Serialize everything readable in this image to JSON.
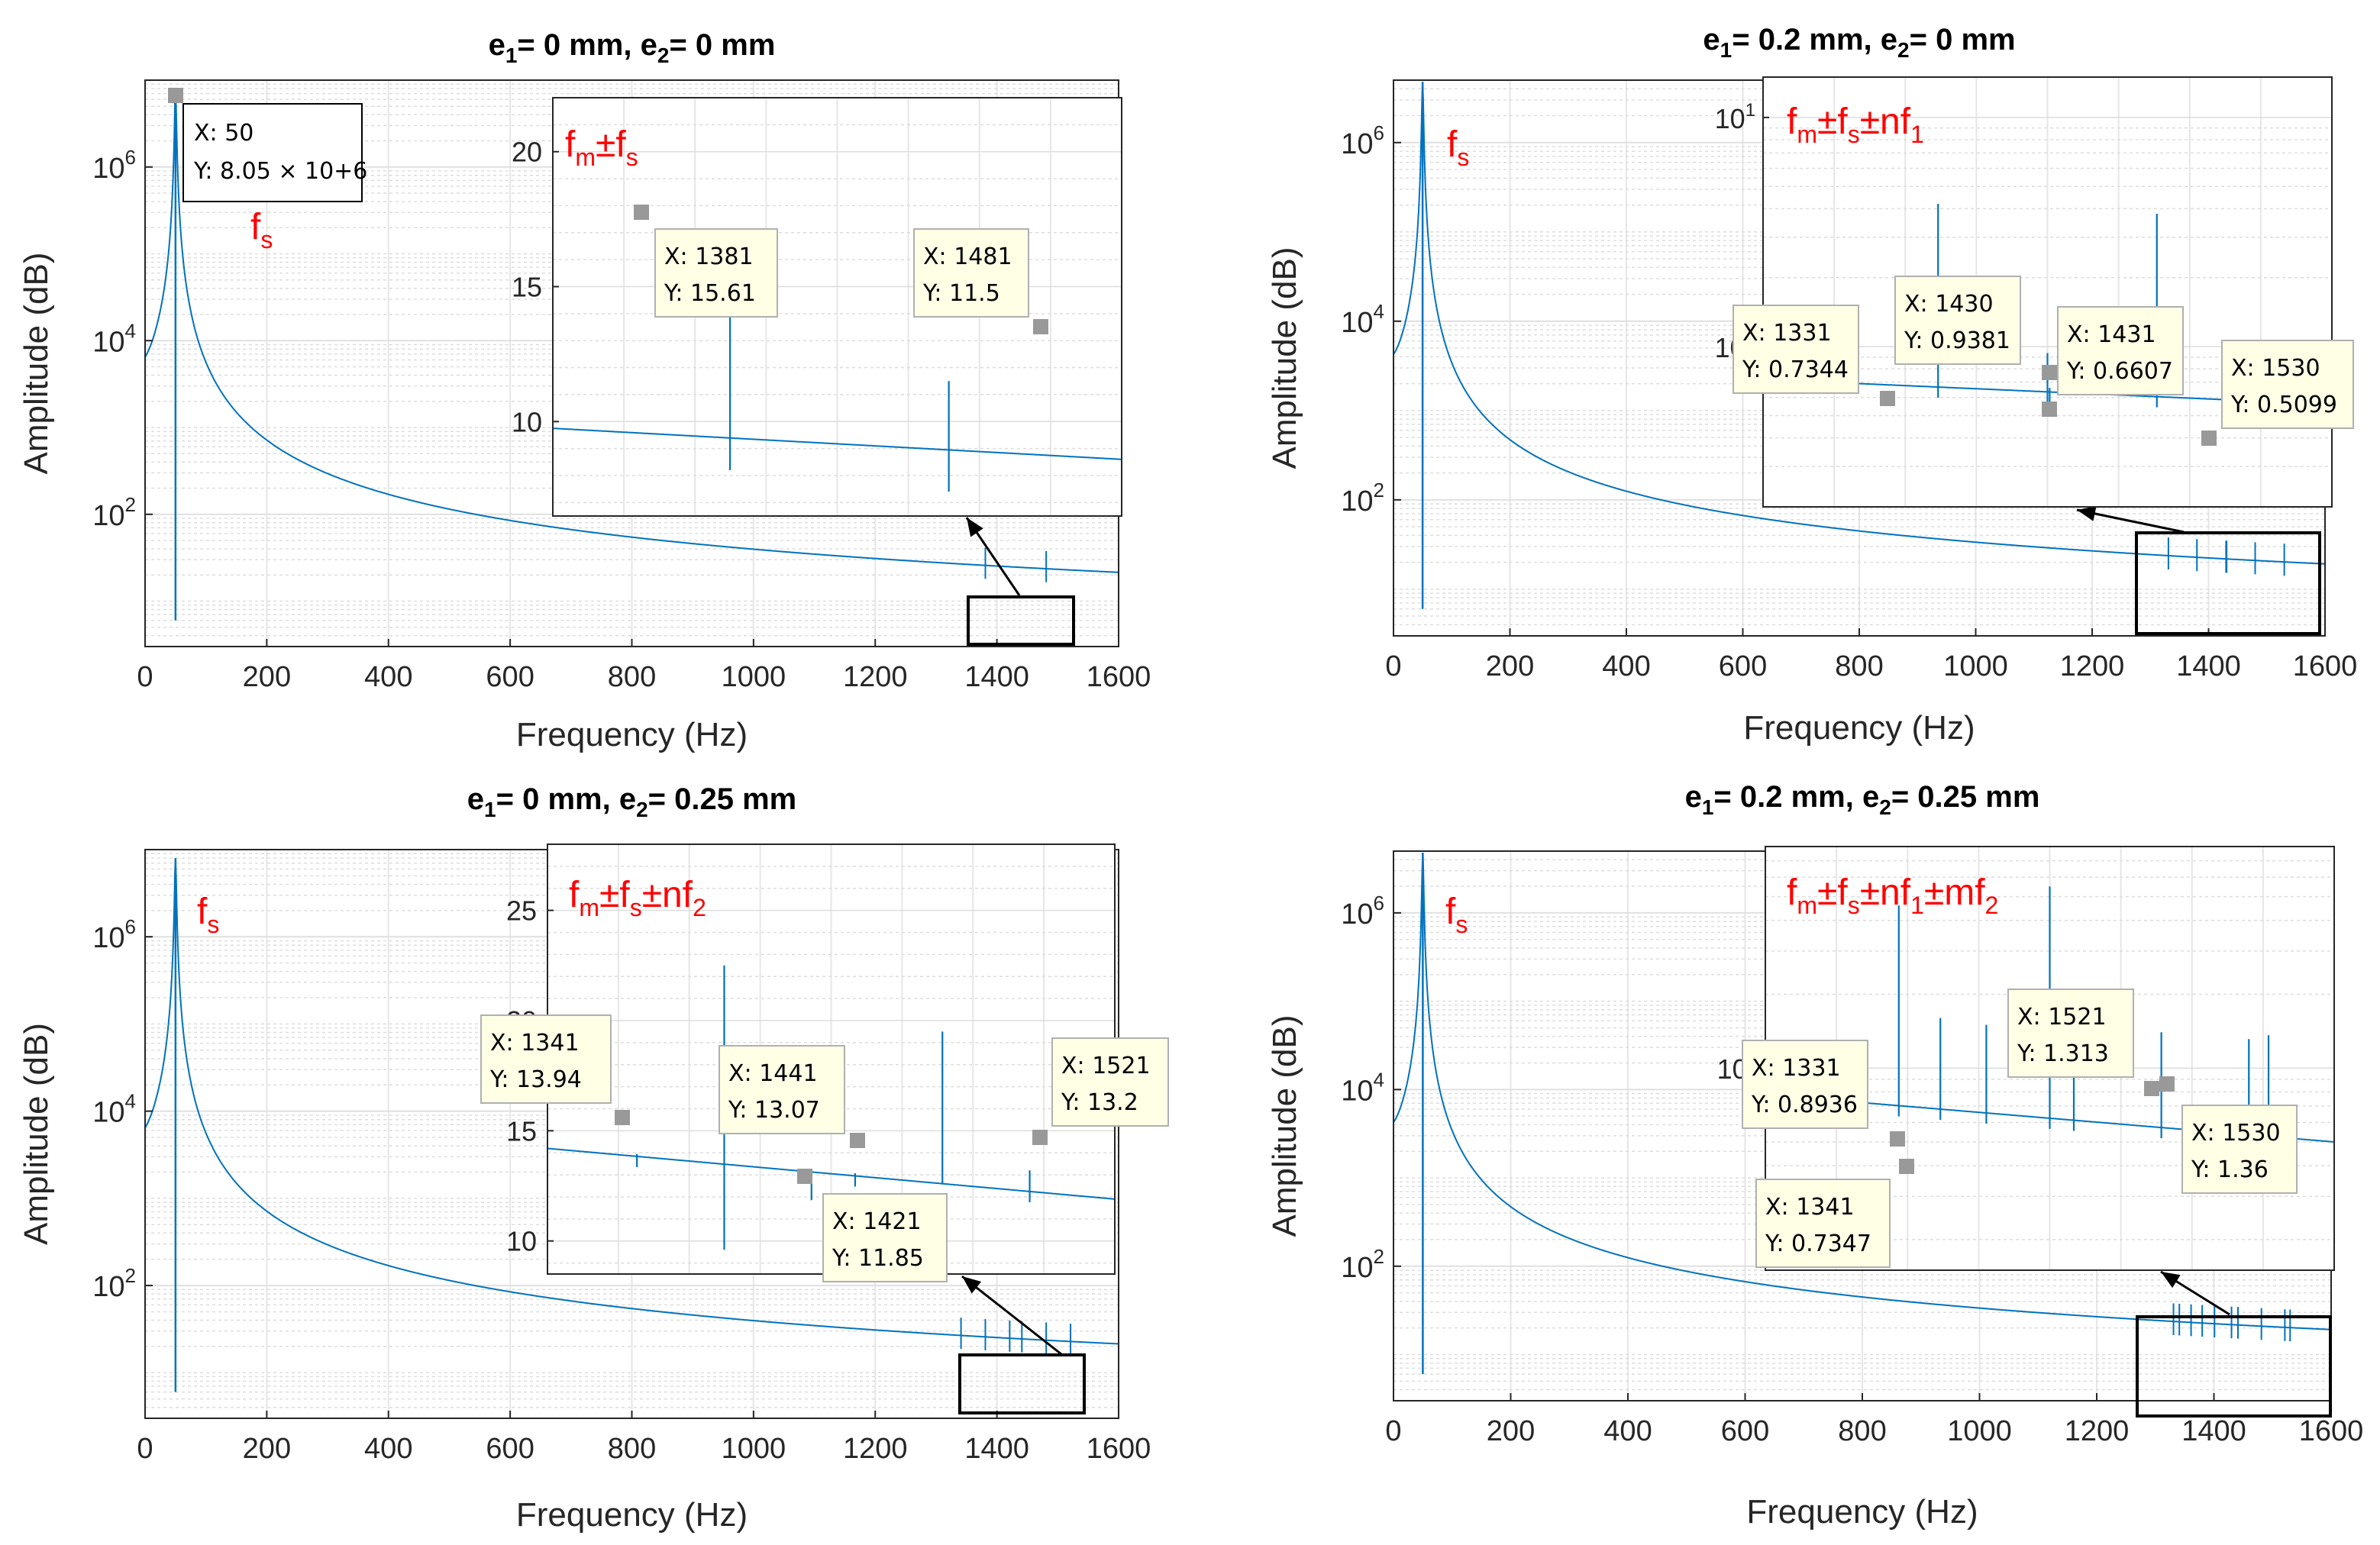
{
  "chart_data": [
    {
      "type": "line",
      "title": "e1= 0 mm, e2= 0 mm",
      "title_parts": {
        "e1_label": "e",
        "e1_sub": "1",
        "e1_val": "= 0 mm,",
        "e2_label": "e",
        "e2_sub": "2",
        "e2_val": "= 0 mm"
      },
      "xlabel": "Frequency (Hz)",
      "ylabel": "Amplitude (dB)",
      "xlim": [
        0,
        1600
      ],
      "ylim": [
        3,
        10000000
      ],
      "yscale": "log",
      "xticks": [
        "0",
        "200",
        "400",
        "600",
        "800",
        "1000",
        "1200",
        "1400",
        "1600"
      ],
      "yticks": [
        {
          "base": "10",
          "exp": "2"
        },
        {
          "base": "10",
          "exp": "4"
        },
        {
          "base": "10",
          "exp": "6"
        }
      ],
      "peak": {
        "x": 50,
        "y": 8050000
      },
      "annotation": {
        "base": "f",
        "sub": "s"
      },
      "datatip": {
        "x_line": "X: 50",
        "y_line": "Y: 8.05 × 10+6"
      },
      "inset": {
        "xlim": [
          1300,
          1560
        ],
        "ylim": [
          6.5,
          22
        ],
        "yscale": "linear",
        "yticks": [
          "10",
          "15",
          "20"
        ],
        "baseline": [
          9.75,
          8.6
        ],
        "spikes": [
          {
            "x": 1381,
            "y": 15.61,
            "dip": 8.2
          },
          {
            "x": 1481,
            "y": 11.5,
            "dip": 7.4
          }
        ],
        "annotation_parts": [
          "f",
          "m",
          "±f",
          "s"
        ],
        "datatips": [
          {
            "x_line": "X: 1381",
            "y_line": "Y: 15.61"
          },
          {
            "x_line": "X: 1481",
            "y_line": "Y: 11.5"
          }
        ]
      }
    },
    {
      "type": "line",
      "title": "e1= 0.2 mm, e2= 0 mm",
      "title_parts": {
        "e1_label": "e",
        "e1_sub": "1",
        "e1_val": "= 0.2 mm,",
        "e2_label": "e",
        "e2_sub": "2",
        "e2_val": "= 0 mm"
      },
      "xlabel": "Frequency (Hz)",
      "ylabel": "Amplitude (dB)",
      "xlim": [
        0,
        1600
      ],
      "ylim": [
        3,
        5000000
      ],
      "yscale": "log",
      "xticks": [
        "0",
        "200",
        "400",
        "600",
        "800",
        "1000",
        "1200",
        "1400",
        "1600"
      ],
      "yticks": [
        {
          "base": "10",
          "exp": "2"
        },
        {
          "base": "10",
          "exp": "4"
        },
        {
          "base": "10",
          "exp": "6"
        }
      ],
      "peak": {
        "x": 50,
        "y": 4800000
      },
      "annotation": {
        "base": "f",
        "sub": "s"
      },
      "inset": {
        "xlim": [
          1300,
          1560
        ],
        "ylim": [
          0.2,
          15
        ],
        "yscale": "log",
        "yticks": [
          {
            "base": "10",
            "exp": "0"
          },
          {
            "base": "10",
            "exp": "1"
          }
        ],
        "baseline": [
          0.72,
          0.56
        ],
        "spikes": [
          {
            "x": 1331,
            "y": 0.7344
          },
          {
            "x": 1380,
            "y": 4.2
          },
          {
            "x": 1430,
            "y": 0.9381
          },
          {
            "x": 1431,
            "y": 0.6607
          },
          {
            "x": 1480,
            "y": 3.8
          },
          {
            "x": 1530,
            "y": 0.5099
          }
        ],
        "annotation_parts": [
          "f",
          "m",
          "±f",
          "s",
          "±nf",
          "1"
        ],
        "datatips": [
          {
            "x_line": "X: 1331",
            "y_line": "Y: 0.7344"
          },
          {
            "x_line": "X: 1430",
            "y_line": "Y: 0.9381"
          },
          {
            "x_line": "X: 1431",
            "y_line": "Y: 0.6607"
          },
          {
            "x_line": "X: 1530",
            "y_line": "Y: 0.5099"
          }
        ]
      }
    },
    {
      "type": "line",
      "title": "e1= 0 mm, e2= 0.25 mm",
      "title_parts": {
        "e1_label": "e",
        "e1_sub": "1",
        "e1_val": "= 0 mm,",
        "e2_label": "e",
        "e2_sub": "2",
        "e2_val": "= 0.25 mm"
      },
      "xlabel": "Frequency (Hz)",
      "ylabel": "Amplitude (dB)",
      "xlim": [
        0,
        1600
      ],
      "ylim": [
        3,
        10000000
      ],
      "yscale": "log",
      "xticks": [
        "0",
        "200",
        "400",
        "600",
        "800",
        "1000",
        "1200",
        "1400",
        "1600"
      ],
      "yticks": [
        {
          "base": "10",
          "exp": "2"
        },
        {
          "base": "10",
          "exp": "4"
        },
        {
          "base": "10",
          "exp": "6"
        }
      ],
      "peak": {
        "x": 50,
        "y": 8000000
      },
      "annotation": {
        "base": "f",
        "sub": "s"
      },
      "inset": {
        "xlim": [
          1300,
          1560
        ],
        "ylim": [
          8.5,
          28
        ],
        "yscale": "linear",
        "yticks": [
          "10",
          "15",
          "20",
          "25"
        ],
        "baseline": [
          14.2,
          11.9
        ],
        "spikes": [
          {
            "x": 1341,
            "y": 13.94
          },
          {
            "x": 1381,
            "y": 22.5,
            "dip": 9.6
          },
          {
            "x": 1421,
            "y": 11.85
          },
          {
            "x": 1441,
            "y": 13.07
          },
          {
            "x": 1481,
            "y": 19.5,
            "dip": 12.6
          },
          {
            "x": 1521,
            "y": 13.2
          }
        ],
        "annotation_parts": [
          "f",
          "m",
          "±f",
          "s",
          "±nf",
          "2"
        ],
        "datatips": [
          {
            "x_line": "X: 1341",
            "y_line": "Y: 13.94"
          },
          {
            "x_line": "X: 1441",
            "y_line": "Y: 13.07"
          },
          {
            "x_line": "X: 1421",
            "y_line": "Y: 11.85"
          },
          {
            "x_line": "X: 1521",
            "y_line": "Y: 13.2"
          }
        ]
      }
    },
    {
      "type": "line",
      "title": "e1= 0.2 mm, e2= 0.25 mm",
      "title_parts": {
        "e1_label": "e",
        "e1_sub": "1",
        "e1_val": "= 0.2 mm,",
        "e2_label": "e",
        "e2_sub": "2",
        "e2_val": "= 0.25 mm"
      },
      "xlabel": "Frequency (Hz)",
      "ylabel": "Amplitude (dB)",
      "xlim": [
        0,
        1600
      ],
      "ylim": [
        3,
        5000000
      ],
      "yscale": "log",
      "xticks": [
        "0",
        "200",
        "400",
        "600",
        "800",
        "1000",
        "1200",
        "1400",
        "1600"
      ],
      "yticks": [
        {
          "base": "10",
          "exp": "2"
        },
        {
          "base": "10",
          "exp": "4"
        },
        {
          "base": "10",
          "exp": "6"
        }
      ],
      "peak": {
        "x": 50,
        "y": 4800000
      },
      "annotation": {
        "base": "f",
        "sub": "s"
      },
      "inset": {
        "xlim": [
          1300,
          1560
        ],
        "ylim": [
          0.15,
          8
        ],
        "yscale": "log",
        "yticks": [
          {
            "base": "10",
            "exp": "0"
          }
        ],
        "baseline": [
          0.78,
          0.5
        ],
        "spikes": [
          {
            "x": 1331,
            "y": 0.8936
          },
          {
            "x": 1341,
            "y": 0.7347
          },
          {
            "x": 1361,
            "y": 4.6
          },
          {
            "x": 1380,
            "y": 1.6
          },
          {
            "x": 1401,
            "y": 1.5
          },
          {
            "x": 1430,
            "y": 5.5
          },
          {
            "x": 1441,
            "y": 1.9
          },
          {
            "x": 1481,
            "y": 1.4
          },
          {
            "x": 1521,
            "y": 1.313
          },
          {
            "x": 1530,
            "y": 1.36
          }
        ],
        "annotation_parts": [
          "f",
          "m",
          "±f",
          "s",
          "±nf",
          "1",
          "±mf",
          "2"
        ],
        "datatips": [
          {
            "x_line": "X: 1331",
            "y_line": "Y: 0.8936"
          },
          {
            "x_line": "X: 1341",
            "y_line": "Y: 0.7347"
          },
          {
            "x_line": "X: 1521",
            "y_line": "Y: 1.313"
          },
          {
            "x_line": "X: 1530",
            "y_line": "Y: 1.36"
          }
        ]
      }
    }
  ]
}
